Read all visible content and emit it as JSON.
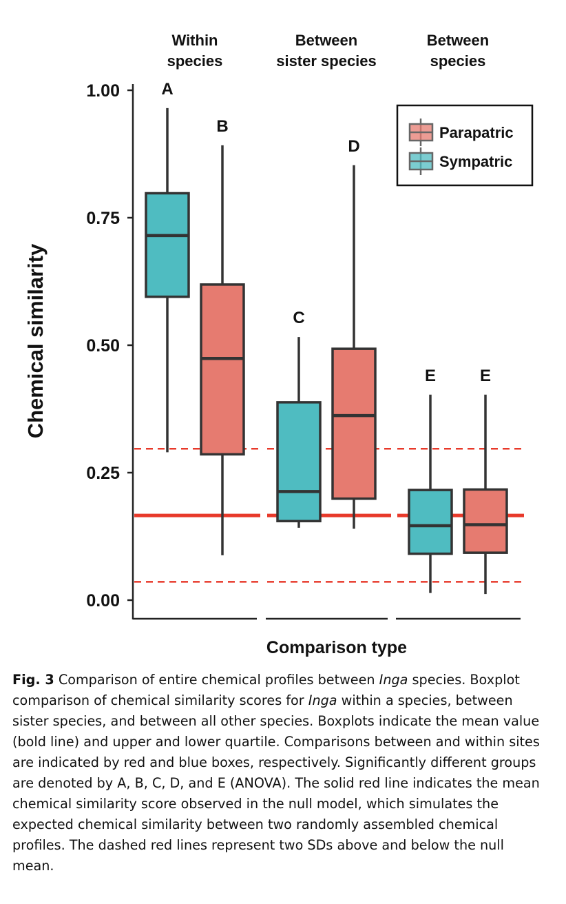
{
  "chart_data": {
    "type": "boxplot",
    "xlabel": "Comparison type",
    "ylabel": "Chemical similarity",
    "ylim": [
      0,
      1
    ],
    "yticks": [
      "0.00",
      "0.25",
      "0.50",
      "0.75",
      "1.00"
    ],
    "ytick_values": [
      0,
      0.25,
      0.5,
      0.75,
      1.0
    ],
    "groups": [
      {
        "label_line1": "Within",
        "label_line2": "species"
      },
      {
        "label_line1": "Between",
        "label_line2": "sister species"
      },
      {
        "label_line1": "Between",
        "label_line2": "species"
      }
    ],
    "series": [
      {
        "name": "Parapatric",
        "color": "#e67b70"
      },
      {
        "name": "Sympatric",
        "color": "#4fbcc1"
      }
    ],
    "boxes": [
      {
        "group": 0,
        "series": "Sympatric",
        "min": 0.29,
        "q1": 0.595,
        "median": 0.715,
        "q3": 0.798,
        "max": 0.965,
        "letter": "A"
      },
      {
        "group": 0,
        "series": "Parapatric",
        "min": 0.088,
        "q1": 0.286,
        "median": 0.474,
        "q3": 0.619,
        "max": 0.892,
        "letter": "B"
      },
      {
        "group": 1,
        "series": "Sympatric",
        "min": 0.142,
        "q1": 0.155,
        "median": 0.213,
        "q3": 0.388,
        "max": 0.516,
        "letter": "C"
      },
      {
        "group": 1,
        "series": "Parapatric",
        "min": 0.14,
        "q1": 0.199,
        "median": 0.362,
        "q3": 0.493,
        "max": 0.853,
        "letter": "D"
      },
      {
        "group": 2,
        "series": "Sympatric",
        "min": 0.014,
        "q1": 0.091,
        "median": 0.146,
        "q3": 0.216,
        "max": 0.403,
        "letter": "E"
      },
      {
        "group": 2,
        "series": "Parapatric",
        "min": 0.012,
        "q1": 0.093,
        "median": 0.148,
        "q3": 0.217,
        "max": 0.403,
        "letter": "E"
      }
    ],
    "reference_lines": {
      "null_mean": 0.166,
      "upper_2sd": 0.297,
      "lower_2sd": 0.036,
      "color": "#e8392a"
    },
    "legend_position": "top-right",
    "grid": false
  },
  "caption": {
    "fig_label": "Fig. 3",
    "part1": " Comparison of entire chemical profiles between ",
    "italic1": "Inga",
    "part2": " species. Boxplot comparison of chemical similarity scores for ",
    "italic2": "Inga",
    "part3": " within a species, between sister species, and between all other species. Boxplots indicate the mean value (bold line) and upper and lower quartile. Comparisons between and within sites are indicated by red and blue boxes, respectively. Significantly different groups are denoted by A, B, C, D, and E (ANOVA). The solid red line indicates the mean chemical similarity score observed in the null model, which simulates the expected chemical similarity between two randomly assembled chemical profiles. The dashed red lines represent two SDs above and below the null mean."
  }
}
